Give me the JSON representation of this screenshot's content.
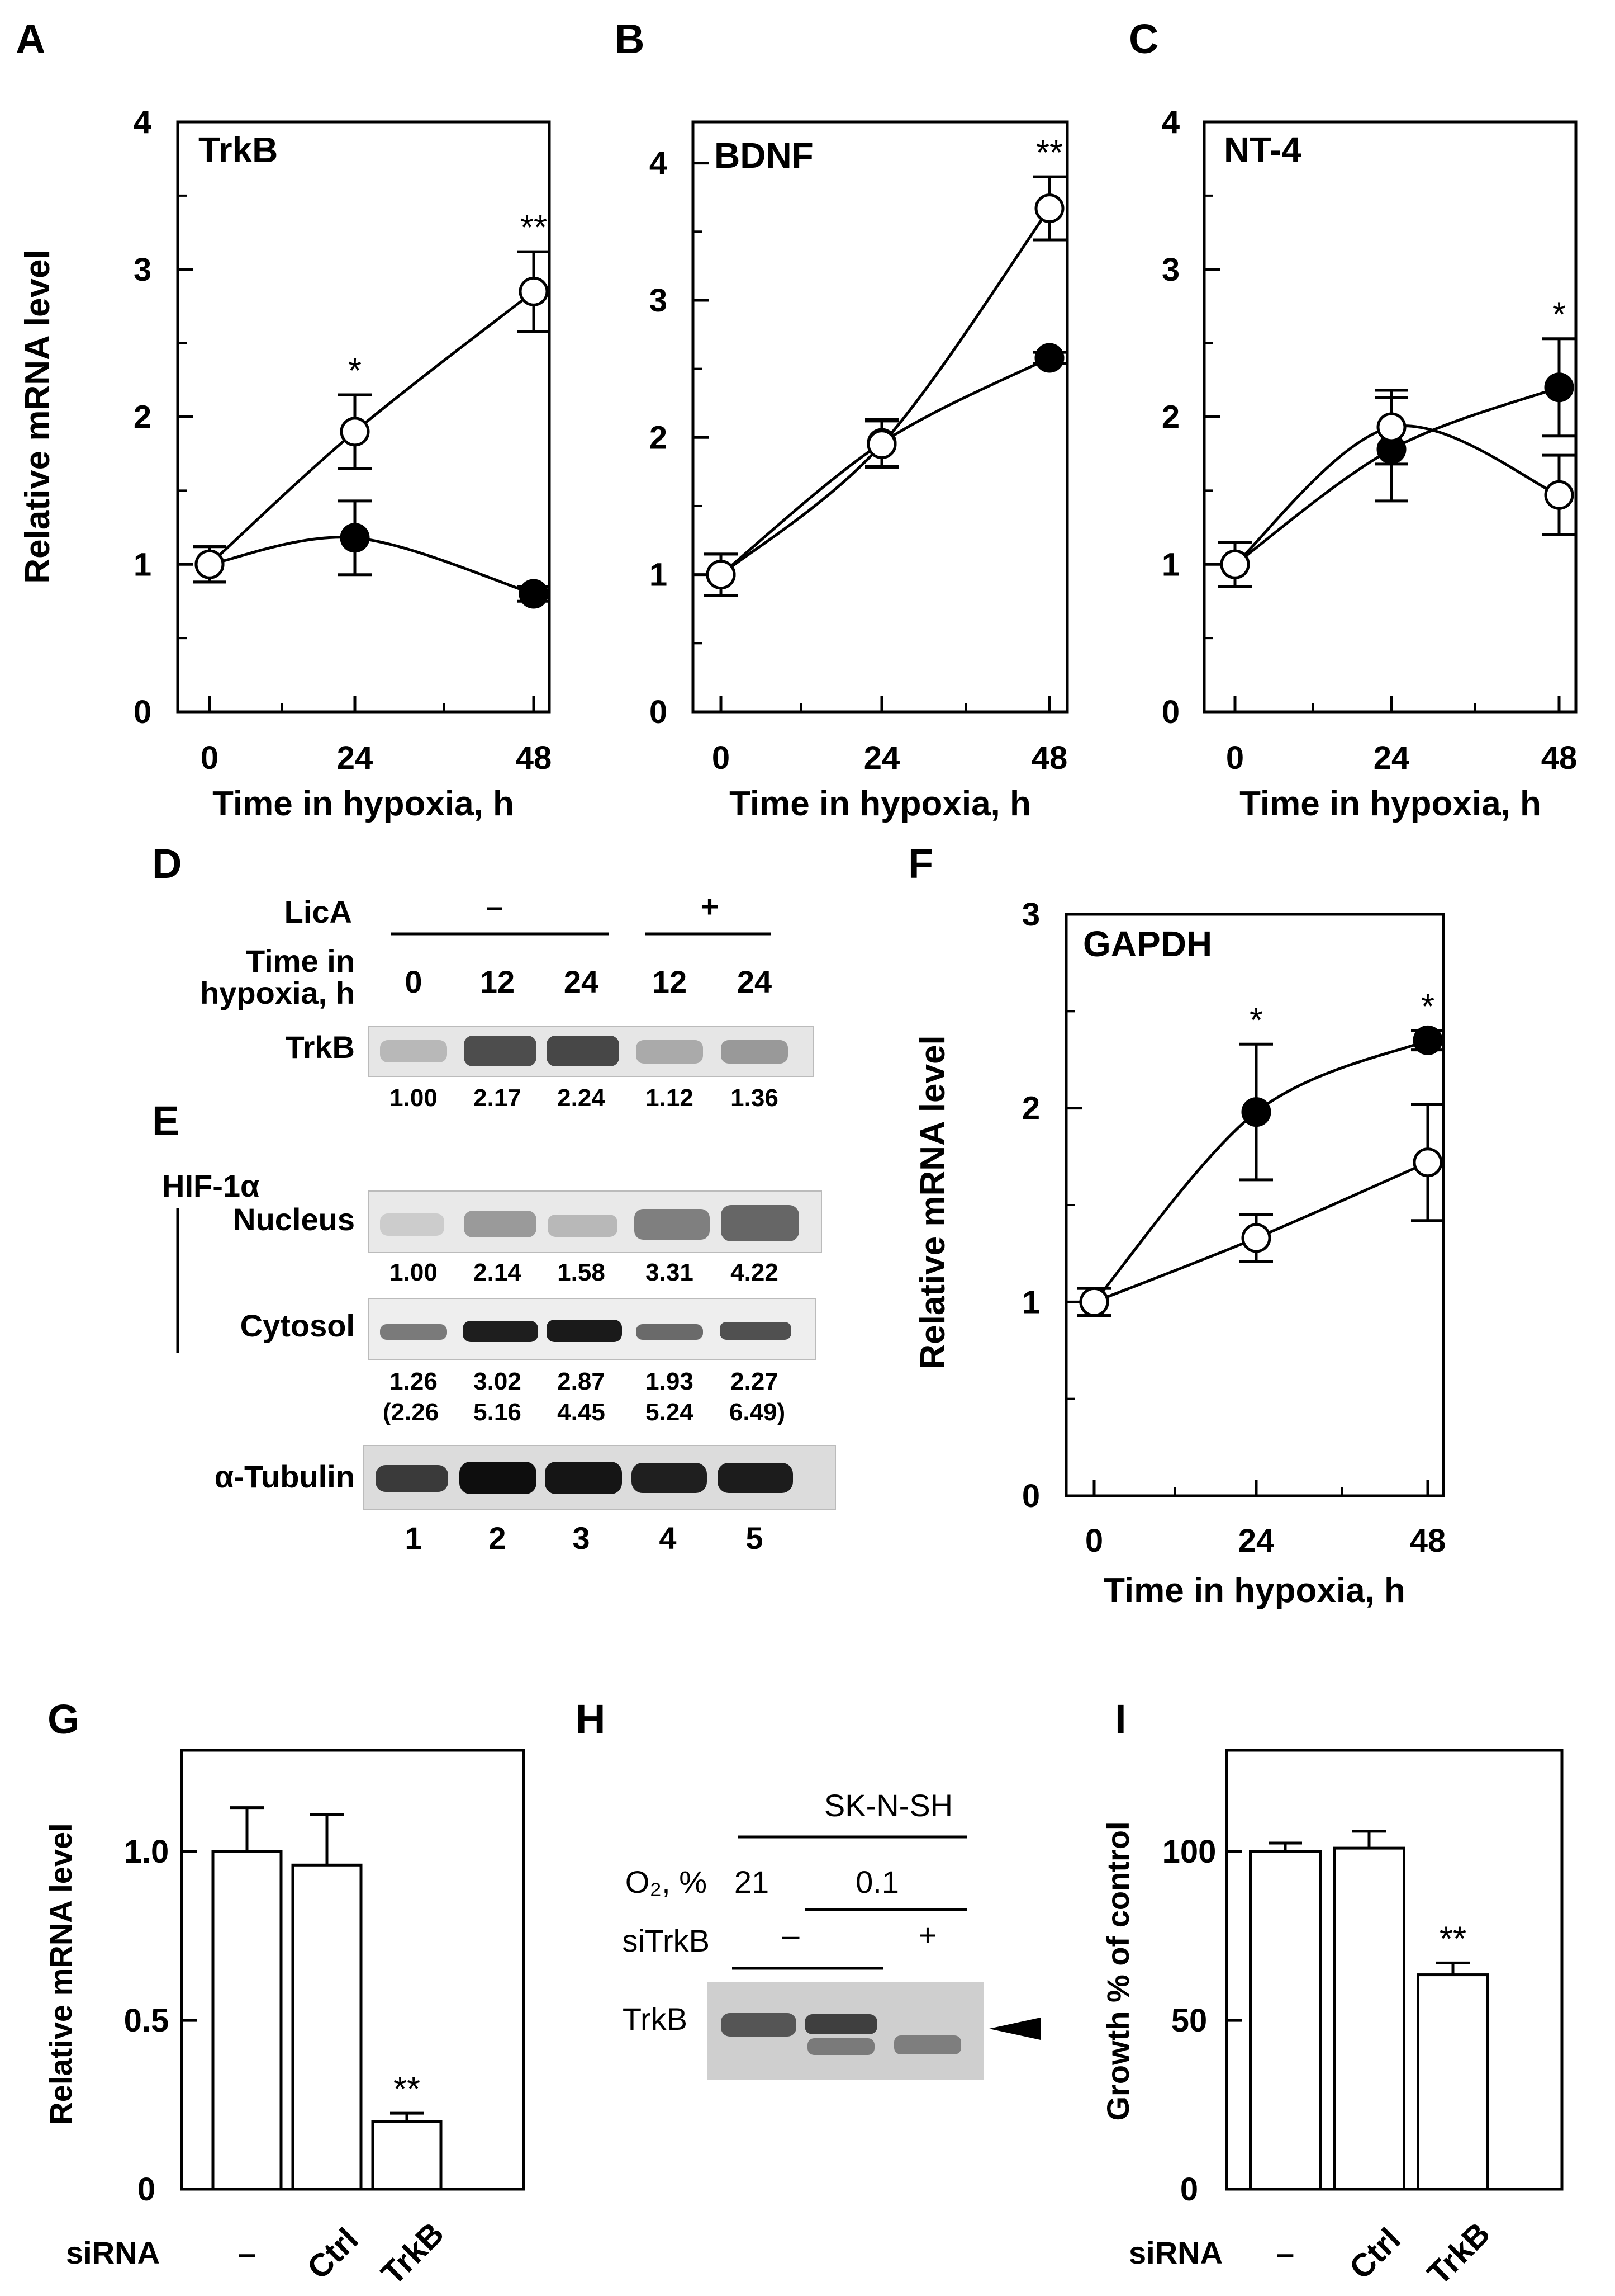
{
  "panels": {
    "A": "A",
    "B": "B",
    "C": "C",
    "D": "D",
    "E": "E",
    "F": "F",
    "G": "G",
    "H": "H",
    "I": "I"
  },
  "line_xlabel": "Time in hypoxia, h",
  "line_ylabel": "Relative mRNA level",
  "blot": {
    "lica_label": "LicA",
    "minus": "–",
    "plus": "+",
    "time_label_1": "Time in",
    "time_label_2": "hypoxia, h",
    "lanes_time": [
      "0",
      "12",
      "24",
      "12",
      "24"
    ],
    "trkb_label": "TrkB",
    "trkb_quant": [
      "1.00",
      "2.17",
      "2.24",
      "1.12",
      "1.36"
    ],
    "hif_label": "HIF-1α",
    "nucleus_label": "Nucleus",
    "nucleus_quant": [
      "1.00",
      "2.14",
      "1.58",
      "3.31",
      "4.22"
    ],
    "cytosol_label": "Cytosol",
    "cytosol_quant": [
      "1.26",
      "3.02",
      "2.87",
      "1.93",
      "2.27"
    ],
    "cytosol_quant2": [
      "(2.26",
      "5.16",
      "4.45",
      "5.24",
      "6.49)"
    ],
    "tubulin_label": "α-Tubulin",
    "lane_numbers": [
      "1",
      "2",
      "3",
      "4",
      "5"
    ]
  },
  "blot_h": {
    "cell_line": "SK-N-SH",
    "o2_label": "O₂, %",
    "o2_21": "21",
    "o2_01": "0.1",
    "sitrkb_label": "siTrkB",
    "minus": "–",
    "plus": "+",
    "trkb_label": "TrkB"
  },
  "chart_data": [
    {
      "id": "A",
      "type": "line",
      "title": "TrkB",
      "xlabel": "Time in hypoxia, h",
      "ylabel": "Relative mRNA level",
      "x": [
        0,
        24,
        48
      ],
      "ylim": [
        0,
        4
      ],
      "yticks": [
        "0",
        "1",
        "2",
        "3",
        "4"
      ],
      "xticks": [
        "0",
        "24",
        "48"
      ],
      "series": [
        {
          "marker": "open",
          "values": [
            1.0,
            1.9,
            2.85
          ],
          "errors": [
            0.12,
            0.25,
            0.27
          ]
        },
        {
          "marker": "filled",
          "values": [
            1.0,
            1.18,
            0.8
          ],
          "errors": [
            0.12,
            0.25,
            0.05
          ]
        }
      ],
      "annotations": [
        {
          "x": 24,
          "text": "*"
        },
        {
          "x": 48,
          "text": "**"
        }
      ]
    },
    {
      "id": "B",
      "type": "line",
      "title": "BDNF",
      "xlabel": "Time in hypoxia, h",
      "ylabel": "",
      "x": [
        0,
        24,
        48
      ],
      "ylim": [
        0,
        4.3
      ],
      "yticks": [
        "0",
        "1",
        "2",
        "3",
        "4"
      ],
      "xticks": [
        "0",
        "24",
        "48"
      ],
      "series": [
        {
          "marker": "open",
          "values": [
            1.0,
            1.95,
            3.67
          ],
          "errors": [
            0.15,
            0.17,
            0.23
          ]
        },
        {
          "marker": "filled",
          "values": [
            1.0,
            1.96,
            2.58
          ],
          "errors": [
            0.15,
            0.17,
            0.04
          ]
        }
      ],
      "annotations": [
        {
          "x": 48,
          "text": "**"
        }
      ]
    },
    {
      "id": "C",
      "type": "line",
      "title": "NT-4",
      "xlabel": "Time in hypoxia, h",
      "ylabel": "",
      "x": [
        0,
        24,
        48
      ],
      "ylim": [
        0,
        4
      ],
      "yticks": [
        "0",
        "1",
        "2",
        "3",
        "4"
      ],
      "xticks": [
        "0",
        "24",
        "48"
      ],
      "series": [
        {
          "marker": "open",
          "values": [
            1.0,
            1.93,
            1.47
          ],
          "errors": [
            0.15,
            0.25,
            0.27
          ]
        },
        {
          "marker": "filled",
          "values": [
            1.0,
            1.78,
            2.2
          ],
          "errors": [
            0.15,
            0.35,
            0.33
          ]
        }
      ],
      "annotations": [
        {
          "x": 48,
          "text": "*"
        }
      ]
    },
    {
      "id": "F",
      "type": "line",
      "title": "GAPDH",
      "xlabel": "Time in hypoxia, h",
      "ylabel": "Relative mRNA level",
      "x": [
        0,
        24,
        48
      ],
      "ylim": [
        0,
        3
      ],
      "yticks": [
        "0",
        "1",
        "2",
        "3"
      ],
      "xticks": [
        "0",
        "24",
        "48"
      ],
      "series": [
        {
          "marker": "open",
          "values": [
            1.0,
            1.33,
            1.72
          ],
          "errors": [
            0.07,
            0.12,
            0.3
          ]
        },
        {
          "marker": "filled",
          "values": [
            1.0,
            1.98,
            2.35
          ],
          "errors": [
            0.07,
            0.35,
            0.05
          ]
        }
      ],
      "annotations": [
        {
          "x": 24,
          "text": "*"
        },
        {
          "x": 48,
          "text": "*"
        }
      ]
    },
    {
      "id": "G",
      "type": "bar",
      "ylabel": "Relative mRNA level",
      "xlabel": "siRNA",
      "categories": [
        "–",
        "Ctrl",
        "TrkB"
      ],
      "values": [
        1.0,
        0.96,
        0.2
      ],
      "errors": [
        0.13,
        0.15,
        0.025
      ],
      "ylim": [
        0,
        1.3
      ],
      "yticks": [
        "0",
        "0.5",
        "1.0"
      ],
      "ytick_values": [
        0,
        0.5,
        1.0
      ],
      "annotations": [
        {
          "index": 2,
          "text": "**"
        }
      ]
    },
    {
      "id": "I",
      "type": "bar",
      "ylabel": "Growth % of control",
      "xlabel": "siRNA",
      "categories": [
        "–",
        "Ctrl",
        "TrkB"
      ],
      "values": [
        100,
        101,
        63.5
      ],
      "errors": [
        2.5,
        5,
        3.5
      ],
      "ylim": [
        0,
        130
      ],
      "yticks": [
        "0",
        "50",
        "100"
      ],
      "ytick_values": [
        0,
        50,
        100
      ],
      "annotations": [
        {
          "index": 2,
          "text": "**"
        }
      ]
    }
  ]
}
